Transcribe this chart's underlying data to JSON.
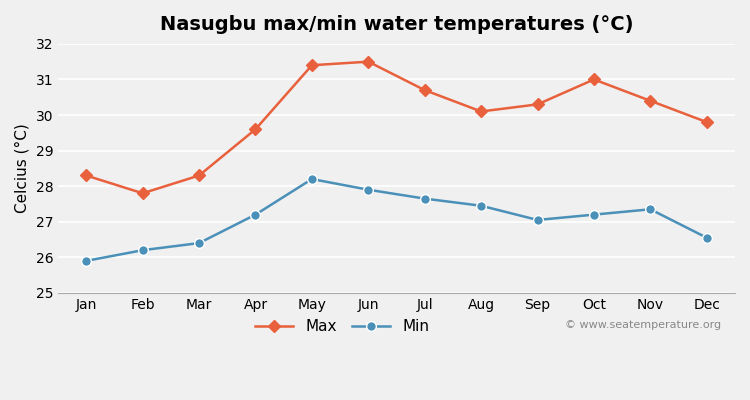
{
  "title": "Nasugbu max/min water temperatures (°C)",
  "ylabel": "Celcius (°C)",
  "months": [
    "Jan",
    "Feb",
    "Mar",
    "Apr",
    "May",
    "Jun",
    "Jul",
    "Aug",
    "Sep",
    "Oct",
    "Nov",
    "Dec"
  ],
  "max_temps": [
    28.3,
    27.8,
    28.3,
    29.6,
    31.4,
    31.5,
    30.7,
    30.1,
    30.3,
    31.0,
    30.4,
    29.8
  ],
  "min_temps": [
    25.9,
    26.2,
    26.4,
    27.2,
    28.2,
    27.9,
    27.65,
    27.45,
    27.05,
    27.2,
    27.35,
    26.55
  ],
  "max_color": "#e8603c",
  "min_color": "#4a90b8",
  "ylim": [
    25,
    32
  ],
  "yticks": [
    25,
    26,
    27,
    28,
    29,
    30,
    31,
    32
  ],
  "bg_color": "#f0f0f0",
  "plot_bg_color": "#f0f0f0",
  "grid_color": "#ffffff",
  "watermark": "© www.seatemperature.org",
  "title_fontsize": 14,
  "label_fontsize": 11,
  "tick_fontsize": 10
}
